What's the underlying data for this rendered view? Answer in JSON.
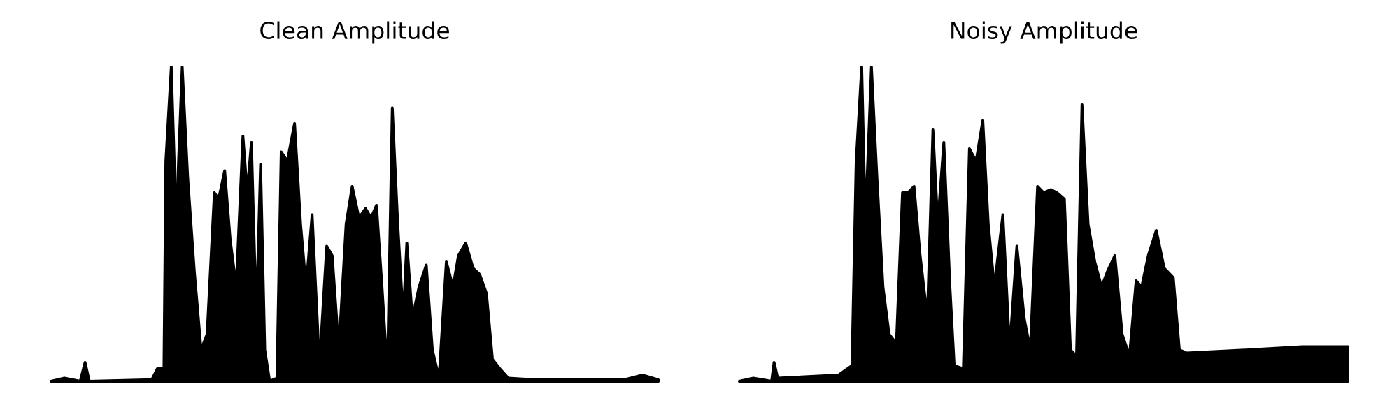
{
  "chart_data": [
    {
      "type": "area",
      "title": "Clean Amplitude",
      "color": "#000000",
      "xlim": [
        0,
        100
      ],
      "ylim": [
        0,
        1
      ],
      "x": [
        0,
        2.2,
        4.8,
        5.6,
        6.3,
        16.6,
        17.5,
        18.6,
        18.9,
        19.8,
        20.6,
        21.6,
        22.5,
        23.6,
        24.7,
        25.7,
        26.9,
        27.6,
        28.6,
        29.5,
        30.5,
        31.6,
        32.3,
        33.0,
        33.8,
        34.5,
        35.2,
        36.0,
        37.2,
        37.9,
        38.9,
        40.1,
        41.1,
        42.0,
        43.0,
        44.2,
        45.4,
        46.3,
        47.4,
        48.6,
        49.6,
        50.7,
        51.8,
        52.7,
        53.6,
        54.5,
        55.4,
        56.2,
        57.1,
        58.0,
        58.6,
        59.5,
        60.6,
        61.8,
        62.8,
        63.9,
        65.1,
        66.2,
        67.1,
        68.3,
        69.5,
        70.6,
        71.7,
        72.7,
        73.9,
        75.3,
        79.7,
        94.4,
        97.4,
        100
      ],
      "values": [
        0,
        0.01,
        0,
        0.06,
        0,
        0.005,
        0.04,
        0.04,
        0.7,
        1.0,
        0.5,
        1.0,
        0.65,
        0.35,
        0.1,
        0.15,
        0.6,
        0.58,
        0.67,
        0.45,
        0.3,
        0.78,
        0.6,
        0.76,
        0.2,
        0.69,
        0.1,
        0,
        0.01,
        0.73,
        0.7,
        0.82,
        0.5,
        0.3,
        0.53,
        0.05,
        0.43,
        0.4,
        0.1,
        0.5,
        0.62,
        0.52,
        0.55,
        0.52,
        0.56,
        0.3,
        0.02,
        0.87,
        0.5,
        0.2,
        0.44,
        0.2,
        0.3,
        0.37,
        0.1,
        0.01,
        0.38,
        0.3,
        0.4,
        0.44,
        0.36,
        0.34,
        0.28,
        0.07,
        0.04,
        0.01,
        0.005,
        0.005,
        0.02,
        0.005
      ]
    },
    {
      "type": "area",
      "title": "Noisy Amplitude",
      "color": "#000000",
      "xlim": [
        0,
        100
      ],
      "ylim": [
        0,
        1
      ],
      "x": [
        0,
        2.3,
        5.3,
        5.7,
        6.3,
        16.3,
        18.5,
        19.2,
        20.1,
        20.7,
        21.7,
        22.6,
        23.6,
        24.6,
        25.8,
        26.8,
        27.7,
        28.7,
        29.7,
        30.9,
        31.8,
        32.6,
        33.6,
        34.6,
        35.3,
        36.8,
        37.8,
        38.9,
        40.0,
        40.9,
        41.9,
        43.3,
        44.4,
        45.6,
        46.8,
        47.8,
        49.0,
        50.0,
        51.2,
        52.2,
        53.4,
        54.4,
        55.4,
        56.3,
        57.3,
        58.4,
        59.5,
        60.5,
        61.7,
        62.9,
        64.1,
        65.2,
        66.1,
        67.2,
        68.5,
        69.8,
        71.3,
        72.3,
        73.5,
        83.7,
        92.5,
        100
      ],
      "values": [
        0,
        0.01,
        0,
        0.06,
        0.01,
        0.02,
        0.05,
        0.7,
        1.0,
        0.5,
        1.0,
        0.65,
        0.3,
        0.15,
        0.12,
        0.6,
        0.6,
        0.62,
        0.4,
        0.2,
        0.8,
        0.5,
        0.76,
        0.3,
        0.05,
        0.04,
        0.74,
        0.7,
        0.83,
        0.5,
        0.3,
        0.53,
        0.1,
        0.43,
        0.2,
        0.1,
        0.62,
        0.6,
        0.61,
        0.6,
        0.58,
        0.1,
        0.08,
        0.88,
        0.5,
        0.38,
        0.3,
        0.35,
        0.4,
        0.15,
        0.08,
        0.32,
        0.3,
        0.4,
        0.48,
        0.36,
        0.33,
        0.1,
        0.09,
        0.1,
        0.11,
        0.11
      ]
    }
  ]
}
